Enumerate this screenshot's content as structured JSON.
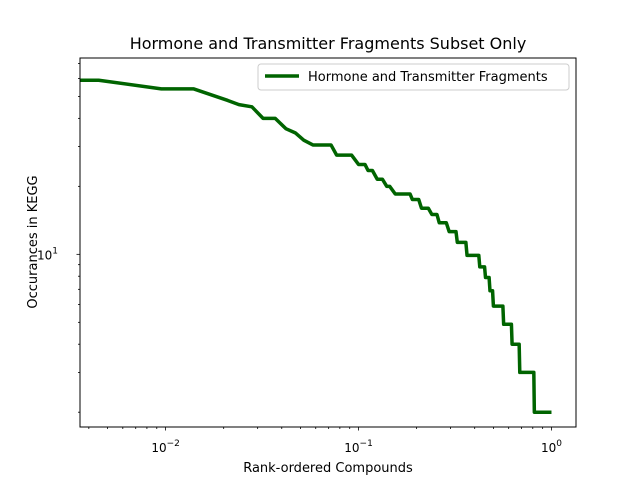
{
  "chart_data": {
    "type": "line",
    "title": "Hormone and Transmitter Fragments Subset Only",
    "xlabel": "Rank-ordered Compounds",
    "ylabel": "Occurances in KEGG",
    "xscale": "log",
    "yscale": "log",
    "xlim": [
      0.0036,
      1.34
    ],
    "ylim": [
      1.72,
      74
    ],
    "x_ticks": [
      {
        "value": 0.01,
        "base": "10",
        "exp": "−2"
      },
      {
        "value": 0.1,
        "base": "10",
        "exp": "−1"
      },
      {
        "value": 1,
        "base": "10",
        "exp": "0"
      }
    ],
    "y_ticks": [
      {
        "value": 10,
        "base": "10",
        "exp": "1"
      }
    ],
    "grid": false,
    "legend_position": "top-right",
    "series": [
      {
        "name": "Hormone and Transmitter Fragments",
        "color": "#006400",
        "points": [
          [
            0.0036,
            59
          ],
          [
            0.0045,
            59
          ],
          [
            0.0095,
            54
          ],
          [
            0.014,
            54
          ],
          [
            0.021,
            48
          ],
          [
            0.024,
            46
          ],
          [
            0.028,
            45
          ],
          [
            0.032,
            40
          ],
          [
            0.037,
            40
          ],
          [
            0.042,
            36
          ],
          [
            0.047,
            34.5
          ],
          [
            0.052,
            32
          ],
          [
            0.058,
            30.5
          ],
          [
            0.072,
            30.5
          ],
          [
            0.077,
            27.5
          ],
          [
            0.092,
            27.5
          ],
          [
            0.1,
            25
          ],
          [
            0.108,
            25
          ],
          [
            0.112,
            23.5
          ],
          [
            0.118,
            23.5
          ],
          [
            0.125,
            21.5
          ],
          [
            0.133,
            21.5
          ],
          [
            0.14,
            20
          ],
          [
            0.145,
            20
          ],
          [
            0.155,
            18.5
          ],
          [
            0.185,
            18.5
          ],
          [
            0.19,
            17.5
          ],
          [
            0.205,
            17.5
          ],
          [
            0.212,
            16
          ],
          [
            0.23,
            16
          ],
          [
            0.24,
            15
          ],
          [
            0.255,
            15
          ],
          [
            0.262,
            13.8
          ],
          [
            0.285,
            13.8
          ],
          [
            0.295,
            12.6
          ],
          [
            0.32,
            12.6
          ],
          [
            0.325,
            11.3
          ],
          [
            0.36,
            11.3
          ],
          [
            0.365,
            9.9
          ],
          [
            0.42,
            9.9
          ],
          [
            0.425,
            8.8
          ],
          [
            0.45,
            8.8
          ],
          [
            0.455,
            7.9
          ],
          [
            0.475,
            7.9
          ],
          [
            0.48,
            6.9
          ],
          [
            0.495,
            6.9
          ],
          [
            0.5,
            5.9
          ],
          [
            0.56,
            5.9
          ],
          [
            0.565,
            4.9
          ],
          [
            0.62,
            4.9
          ],
          [
            0.625,
            4.0
          ],
          [
            0.68,
            4.0
          ],
          [
            0.685,
            3.0
          ],
          [
            0.81,
            3.0
          ],
          [
            0.815,
            2.0
          ],
          [
            1.0,
            2.0
          ]
        ]
      }
    ]
  }
}
